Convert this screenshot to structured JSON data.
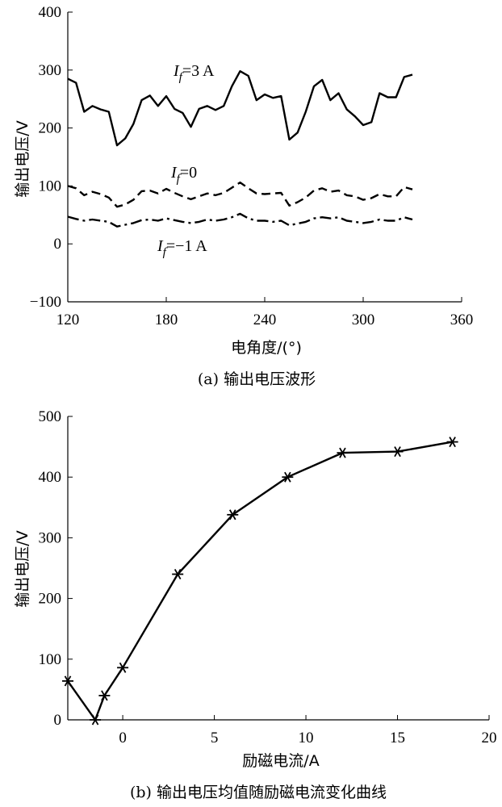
{
  "chart_data": [
    {
      "type": "line",
      "caption": "(a) 输出电压波形",
      "xlabel": "电角度/(°)",
      "ylabel": "输出电压/V",
      "xlim": [
        120,
        360
      ],
      "ylim": [
        -100,
        400
      ],
      "xticks": [
        120,
        180,
        240,
        300,
        360
      ],
      "yticks": [
        -100,
        0,
        100,
        200,
        300,
        400
      ],
      "grid": false,
      "series": [
        {
          "name": "If=3 A",
          "label_main": "I",
          "label_sub": "f",
          "label_rest": "=3 A",
          "style": "solid",
          "x": [
            120,
            125,
            130,
            135,
            140,
            145,
            150,
            155,
            160,
            165,
            170,
            175,
            180,
            185,
            190,
            195,
            200,
            205,
            210,
            215,
            220,
            225,
            230,
            235,
            240,
            245,
            250,
            255,
            260,
            265,
            270,
            275,
            280,
            285,
            290,
            295,
            300,
            305,
            310,
            315,
            320,
            325,
            330,
            335,
            340,
            345,
            350,
            355,
            360
          ],
          "y": [
            285,
            278,
            228,
            238,
            232,
            228,
            170,
            182,
            207,
            248,
            256,
            238,
            255,
            233,
            226,
            202,
            233,
            238,
            231,
            238,
            272,
            298,
            290,
            248,
            258,
            252,
            255,
            180,
            192,
            228,
            272,
            283,
            248,
            260,
            232,
            220,
            205,
            210,
            260,
            253,
            253,
            288,
            292,
            null,
            null,
            null,
            null,
            null,
            null
          ]
        },
        {
          "name": "If=0",
          "label_main": "I",
          "label_sub": "f",
          "label_rest": "=0",
          "style": "dashed",
          "x": [
            120,
            125,
            130,
            135,
            140,
            145,
            150,
            155,
            160,
            165,
            170,
            175,
            180,
            185,
            190,
            195,
            200,
            205,
            210,
            215,
            220,
            225,
            230,
            235,
            240,
            245,
            250,
            255,
            260,
            265,
            270,
            275,
            280,
            285,
            290,
            295,
            300,
            305,
            310,
            315,
            320,
            325,
            330,
            335,
            340,
            345,
            350,
            355,
            360
          ],
          "y": [
            100,
            96,
            84,
            90,
            86,
            80,
            64,
            68,
            76,
            91,
            92,
            87,
            95,
            88,
            82,
            77,
            82,
            87,
            84,
            88,
            97,
            106,
            96,
            87,
            86,
            87,
            88,
            66,
            72,
            80,
            92,
            96,
            90,
            92,
            84,
            82,
            76,
            79,
            86,
            82,
            82,
            98,
            94,
            null,
            null,
            null,
            null,
            null,
            null
          ]
        },
        {
          "name": "If=-1 A",
          "label_main": "I",
          "label_sub": "f",
          "label_rest": "=−1 A",
          "style": "dashdot",
          "x": [
            120,
            125,
            130,
            135,
            140,
            145,
            150,
            155,
            160,
            165,
            170,
            175,
            180,
            185,
            190,
            195,
            200,
            205,
            210,
            215,
            220,
            225,
            230,
            235,
            240,
            245,
            250,
            255,
            260,
            265,
            270,
            275,
            280,
            285,
            290,
            295,
            300,
            305,
            310,
            315,
            320,
            325,
            330,
            335,
            340,
            345,
            350,
            355,
            360
          ],
          "y": [
            47,
            43,
            40,
            42,
            40,
            38,
            30,
            33,
            36,
            41,
            42,
            40,
            44,
            41,
            38,
            36,
            38,
            42,
            40,
            42,
            46,
            52,
            44,
            40,
            40,
            38,
            40,
            32,
            35,
            38,
            44,
            46,
            44,
            46,
            40,
            38,
            36,
            38,
            42,
            40,
            40,
            46,
            42,
            null,
            null,
            null,
            null,
            null,
            null
          ]
        }
      ]
    },
    {
      "type": "line",
      "caption": "(b) 输出电压均值随励磁电流变化曲线",
      "xlabel": "励磁电流/A",
      "ylabel": "输出电压/V",
      "xlim": [
        -3,
        20
      ],
      "ylim": [
        0,
        500
      ],
      "xticks": [
        0,
        5,
        10,
        15,
        20
      ],
      "yticks": [
        0,
        100,
        200,
        300,
        400,
        500
      ],
      "grid": false,
      "marker": "asterisk",
      "series": [
        {
          "x": [
            -3,
            -1.5,
            -1,
            0,
            3,
            6,
            9,
            12,
            15,
            18
          ],
          "y": [
            64,
            0,
            40,
            86,
            240,
            338,
            400,
            440,
            442,
            458
          ]
        }
      ]
    }
  ]
}
